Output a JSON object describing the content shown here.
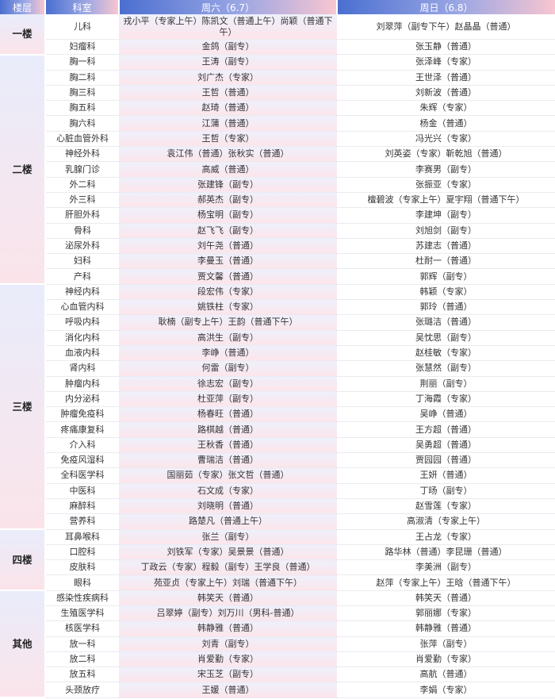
{
  "header": {
    "floor": "楼层",
    "dept": "科室",
    "sat": "周六（6.7）",
    "sun": "周日（6.8）"
  },
  "colors": {
    "header_start": "#4a6fd0",
    "header_end": "#f8c6d0",
    "floor_bg": "#e9ecfb",
    "sat_bg": "#fde5eb"
  },
  "floors": [
    {
      "name": "一楼",
      "rows": [
        [
          "儿科",
          "戎小平（专家上午）陈凯文（普通上午）尚颖（普通下午）",
          "刘翠萍（副专下午）赵晶晶（普通）"
        ],
        [
          "妇瘤科",
          "金鸽（副专）",
          "张玉静（普通）"
        ]
      ]
    },
    {
      "name": "二楼",
      "rows": [
        [
          "胸一科",
          "王涛（副专）",
          "张泽峰（专家）"
        ],
        [
          "胸二科",
          "刘广杰（专家）",
          "王世泽（普通）"
        ],
        [
          "胸三科",
          "王哲（普通）",
          "刘新波（普通）"
        ],
        [
          "胸五科",
          "赵琦（普通）",
          "朱辉（专家）"
        ],
        [
          "胸六科",
          "江蒲（普通）",
          "杨金（普通）"
        ],
        [
          "心脏血管外科",
          "王哲（专家）",
          "冯光兴（专家）"
        ],
        [
          "神经外科",
          "袁江伟（普通）张秋实（普通）",
          "刘英姿（专家）靳乾旭（普通）"
        ],
        [
          "乳腺门诊",
          "高威（普通）",
          "李赛男（副专）"
        ],
        [
          "外二科",
          "张建锋（副专）",
          "张振亚（专家）"
        ],
        [
          "外三科",
          "郝英杰（副专）",
          "檀碧波（专家上午）夏宇翔（普通下午）"
        ],
        [
          "肝胆外科",
          "杨宝明（副专）",
          "李建坤（副专）"
        ],
        [
          "骨科",
          "赵飞飞（副专）",
          "刘旭剑（副专）"
        ],
        [
          "泌尿外科",
          "刘午尧（普通）",
          "苏建志（普通）"
        ],
        [
          "妇科",
          "李曼玉（普通）",
          "杜耐一（普通）"
        ],
        [
          "产科",
          "贾文馨（普通）",
          "郭辉（副专）"
        ]
      ]
    },
    {
      "name": "三楼",
      "rows": [
        [
          "神经内科",
          "段宏伟（专家）",
          "韩颖（专家）"
        ],
        [
          "心血管内科",
          "姚铁柱（专家）",
          "郭玲（普通）"
        ],
        [
          "呼吸内科",
          "耿楠（副专上午）王韵（普通下午）",
          "张璐洁（普通）"
        ],
        [
          "消化内科",
          "高洪生（副专）",
          "吴忱思（副专）"
        ],
        [
          "血液内科",
          "李峥（普通）",
          "赵桂敏（专家）"
        ],
        [
          "肾内科",
          "何雷（副专）",
          "张慧然（副专）"
        ],
        [
          "肿瘤内科",
          "徐志宏（副专）",
          "荆丽（副专）"
        ],
        [
          "内分泌科",
          "杜亚萍（副专）",
          "丁海霞（专家）"
        ],
        [
          "肿瘤免疫科",
          "杨春旺（普通）",
          "吴峥（普通）"
        ],
        [
          "疼痛康复科",
          "路棋越（普通）",
          "王方超（普通）"
        ],
        [
          "介入科",
          "王秋香（普通）",
          "吴勇超（普通）"
        ],
        [
          "免疫风湿科",
          "曹瑞洁（普通）",
          "贾园园（普通）"
        ],
        [
          "全科医学科",
          "国丽茹（专家）张文哲（普通）",
          "王妍（普通）"
        ],
        [
          "中医科",
          "石文成（专家）",
          "丁旸（副专）"
        ],
        [
          "麻醉科",
          "刘晓明（普通）",
          "赵雪莲（专家）"
        ],
        [
          "营养科",
          "路楚凡（普通上午）",
          "高淑清（专家上午）"
        ]
      ]
    },
    {
      "name": "四楼",
      "rows": [
        [
          "耳鼻喉科",
          "张兰（副专）",
          "王占龙（专家）"
        ],
        [
          "口腔科",
          "刘铁军（专家）吴景景（普通）",
          "路华林（普通）李昆珊（普通）"
        ],
        [
          "皮肤科",
          "丁政云（专家）程毅（副专）王学良（普通）",
          "李美洲（副专）"
        ],
        [
          "眼科",
          "苑亚贞（专家上午）刘瑞（普通下午）",
          "赵萍（专家上午）王晗（普通下午）"
        ]
      ]
    },
    {
      "name": "其他",
      "rows": [
        [
          "感染性疾病科",
          "韩笑天（普通）",
          "韩笑天（普通）"
        ],
        [
          "生殖医学科",
          "吕翠婷（副专）刘万川（男科-普通）",
          "郭丽娜（专家）"
        ],
        [
          "核医学科",
          "韩静雅（普通）",
          "韩静雅（普通）"
        ],
        [
          "放一科",
          "刘青（副专）",
          "张萍（副专）"
        ],
        [
          "放二科",
          "肖爱勤（专家）",
          "肖爱勤（专家）"
        ],
        [
          "放五科",
          "宋玉芝（副专）",
          "高航（普通）"
        ],
        [
          "头颈放疗",
          "王媛（普通）",
          "李娟（专家）"
        ]
      ]
    }
  ]
}
